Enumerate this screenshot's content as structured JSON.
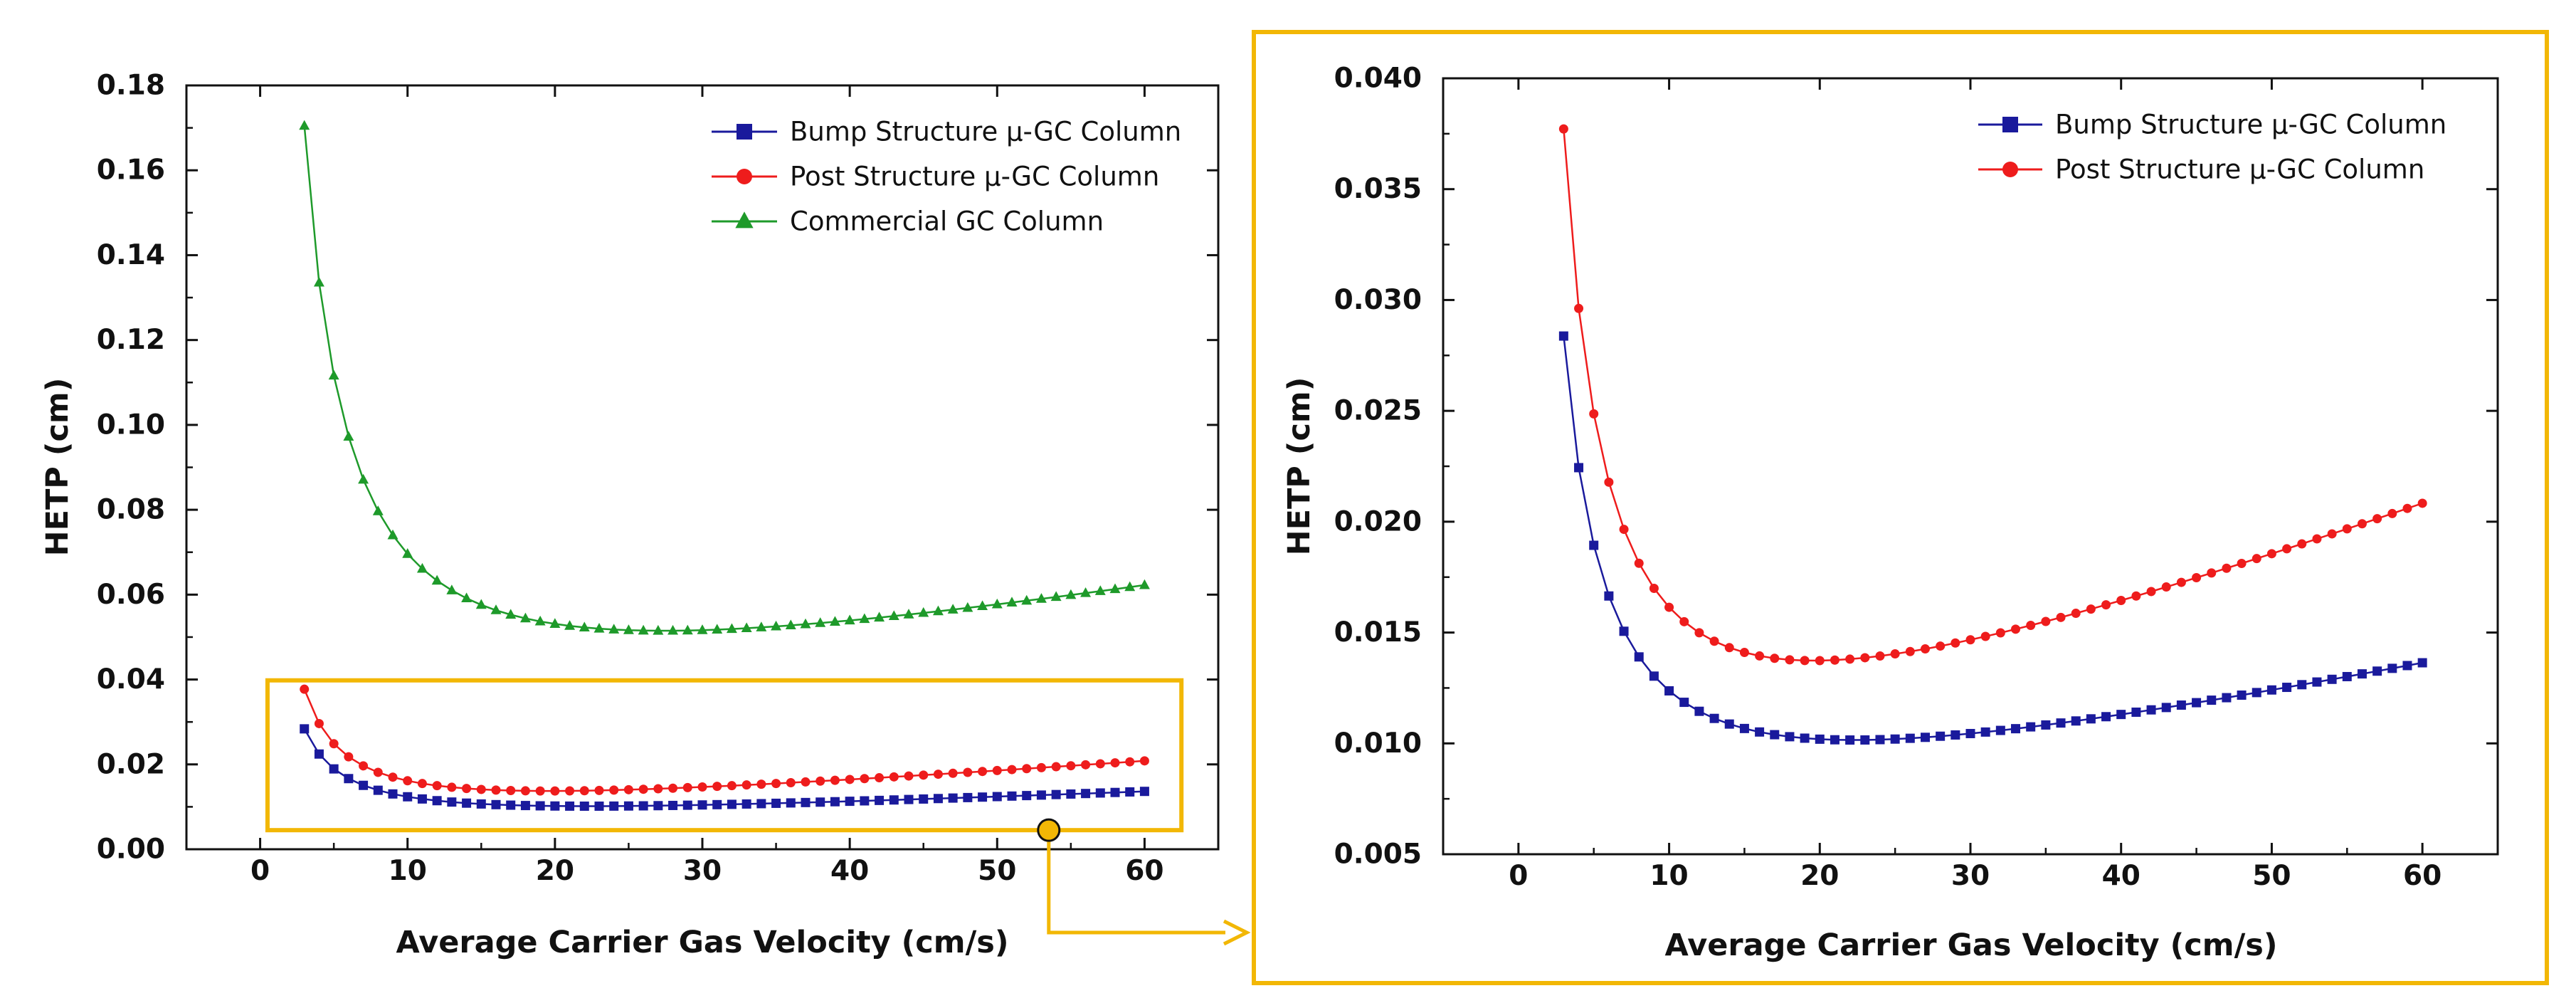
{
  "chart_data": [
    {
      "type": "line",
      "panel": "overview",
      "title": "",
      "xlabel": "Average Carrier Gas Velocity (cm/s)",
      "ylabel": "HETP (cm)",
      "xlim": [
        -5,
        65
      ],
      "ylim": [
        0,
        0.18
      ],
      "xticks": [
        0,
        10,
        20,
        30,
        40,
        50,
        60
      ],
      "yticks": [
        0.0,
        0.02,
        0.04,
        0.06,
        0.08,
        0.1,
        0.12,
        0.14,
        0.16,
        0.18
      ],
      "xtick_labels": [
        "0",
        "10",
        "20",
        "30",
        "40",
        "50",
        "60"
      ],
      "ytick_labels": [
        "0.00",
        "0.02",
        "0.04",
        "0.06",
        "0.08",
        "0.10",
        "0.12",
        "0.14",
        "0.16",
        "0.18"
      ],
      "legend_position": "top-right",
      "series": [
        {
          "name": "Bump Structure µ-GC Column",
          "color": "#1a1a9c",
          "marker": "square",
          "A": 0.0036,
          "B": 0.073,
          "C": 0.000147
        },
        {
          "name": "Post Structure µ-GC Column",
          "color": "#ee1c1c",
          "marker": "circle",
          "A": 0.0035,
          "B": 0.1003,
          "C": 0.000261
        },
        {
          "name": "Commercial GC Column",
          "color": "#1e9a2a",
          "marker": "triangle",
          "A": 0.0185,
          "B": 0.4505,
          "C": 0.000604
        }
      ],
      "x_range": [
        3,
        60
      ],
      "x_step": 1,
      "model": "HETP = A + B/x + C*x"
    },
    {
      "type": "line",
      "panel": "zoom",
      "title": "",
      "xlabel": "Average Carrier Gas Velocity (cm/s)",
      "ylabel": "HETP (cm)",
      "xlim": [
        -5,
        65
      ],
      "ylim": [
        0.005,
        0.04
      ],
      "xticks": [
        0,
        10,
        20,
        30,
        40,
        50,
        60
      ],
      "yticks": [
        0.005,
        0.01,
        0.015,
        0.02,
        0.025,
        0.03,
        0.035,
        0.04
      ],
      "xtick_labels": [
        "0",
        "10",
        "20",
        "30",
        "40",
        "50",
        "60"
      ],
      "ytick_labels": [
        "0.005",
        "0.010",
        "0.015",
        "0.020",
        "0.025",
        "0.030",
        "0.035",
        "0.040"
      ],
      "legend_position": "top-right",
      "series": [
        {
          "name": "Bump Structure µ-GC Column",
          "color": "#1a1a9c",
          "marker": "square",
          "A": 0.0036,
          "B": 0.073,
          "C": 0.000147
        },
        {
          "name": "Post Structure µ-GC Column",
          "color": "#ee1c1c",
          "marker": "circle",
          "A": 0.0035,
          "B": 0.1003,
          "C": 0.000261
        }
      ],
      "x_range": [
        3,
        60
      ],
      "x_step": 1,
      "model": "HETP = A + B/x + C*x"
    }
  ],
  "annotations": {
    "highlight_color": "#f2b705",
    "zoom_region": {
      "x_from": 0.5,
      "x_to": 62.5,
      "y_from": 0.0045,
      "y_to": 0.0398
    },
    "marker_point": {
      "x": 53.5,
      "y": 0.0045
    }
  }
}
